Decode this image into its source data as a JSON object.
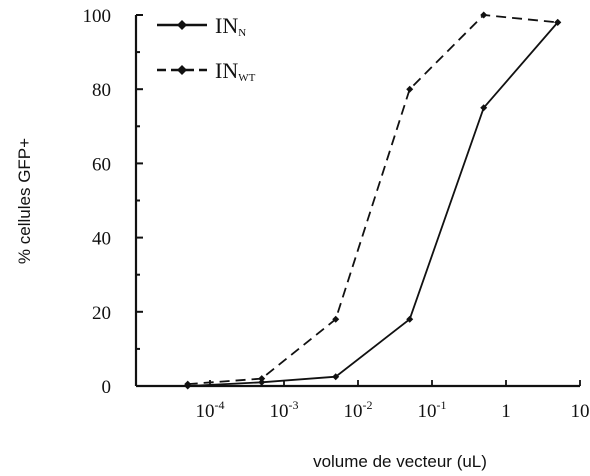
{
  "chart_data": {
    "type": "line",
    "xlabel": "volume de vecteur (uL)",
    "ylabel": "% cellules GFP+",
    "x_scale": "log",
    "xlim": [
      1e-05,
      10
    ],
    "ylim": [
      0,
      100
    ],
    "y_ticks": [
      0,
      20,
      40,
      60,
      80,
      100
    ],
    "x_ticks": [
      {
        "value": 0.0001,
        "base": "10",
        "exp": "-4"
      },
      {
        "value": 0.001,
        "base": "10",
        "exp": "-3"
      },
      {
        "value": 0.01,
        "base": "10",
        "exp": "-2"
      },
      {
        "value": 0.1,
        "base": "10",
        "exp": "-1"
      },
      {
        "value": 1,
        "base": "1",
        "exp": ""
      },
      {
        "value": 10,
        "base": "10",
        "exp": ""
      }
    ],
    "legend_position": "top-left",
    "series": [
      {
        "name": "IN",
        "subscript": "N",
        "line_style": "solid",
        "color": "#111111",
        "x": [
          5e-05,
          0.0005,
          0.005,
          0.05,
          0.5,
          5
        ],
        "y": [
          0,
          1,
          2.5,
          18,
          75,
          98
        ]
      },
      {
        "name": "IN",
        "subscript": "WT",
        "line_style": "dashed",
        "color": "#111111",
        "x": [
          5e-05,
          0.0005,
          0.005,
          0.05,
          0.5,
          5
        ],
        "y": [
          0.5,
          2,
          18,
          80,
          100,
          98
        ]
      }
    ]
  }
}
